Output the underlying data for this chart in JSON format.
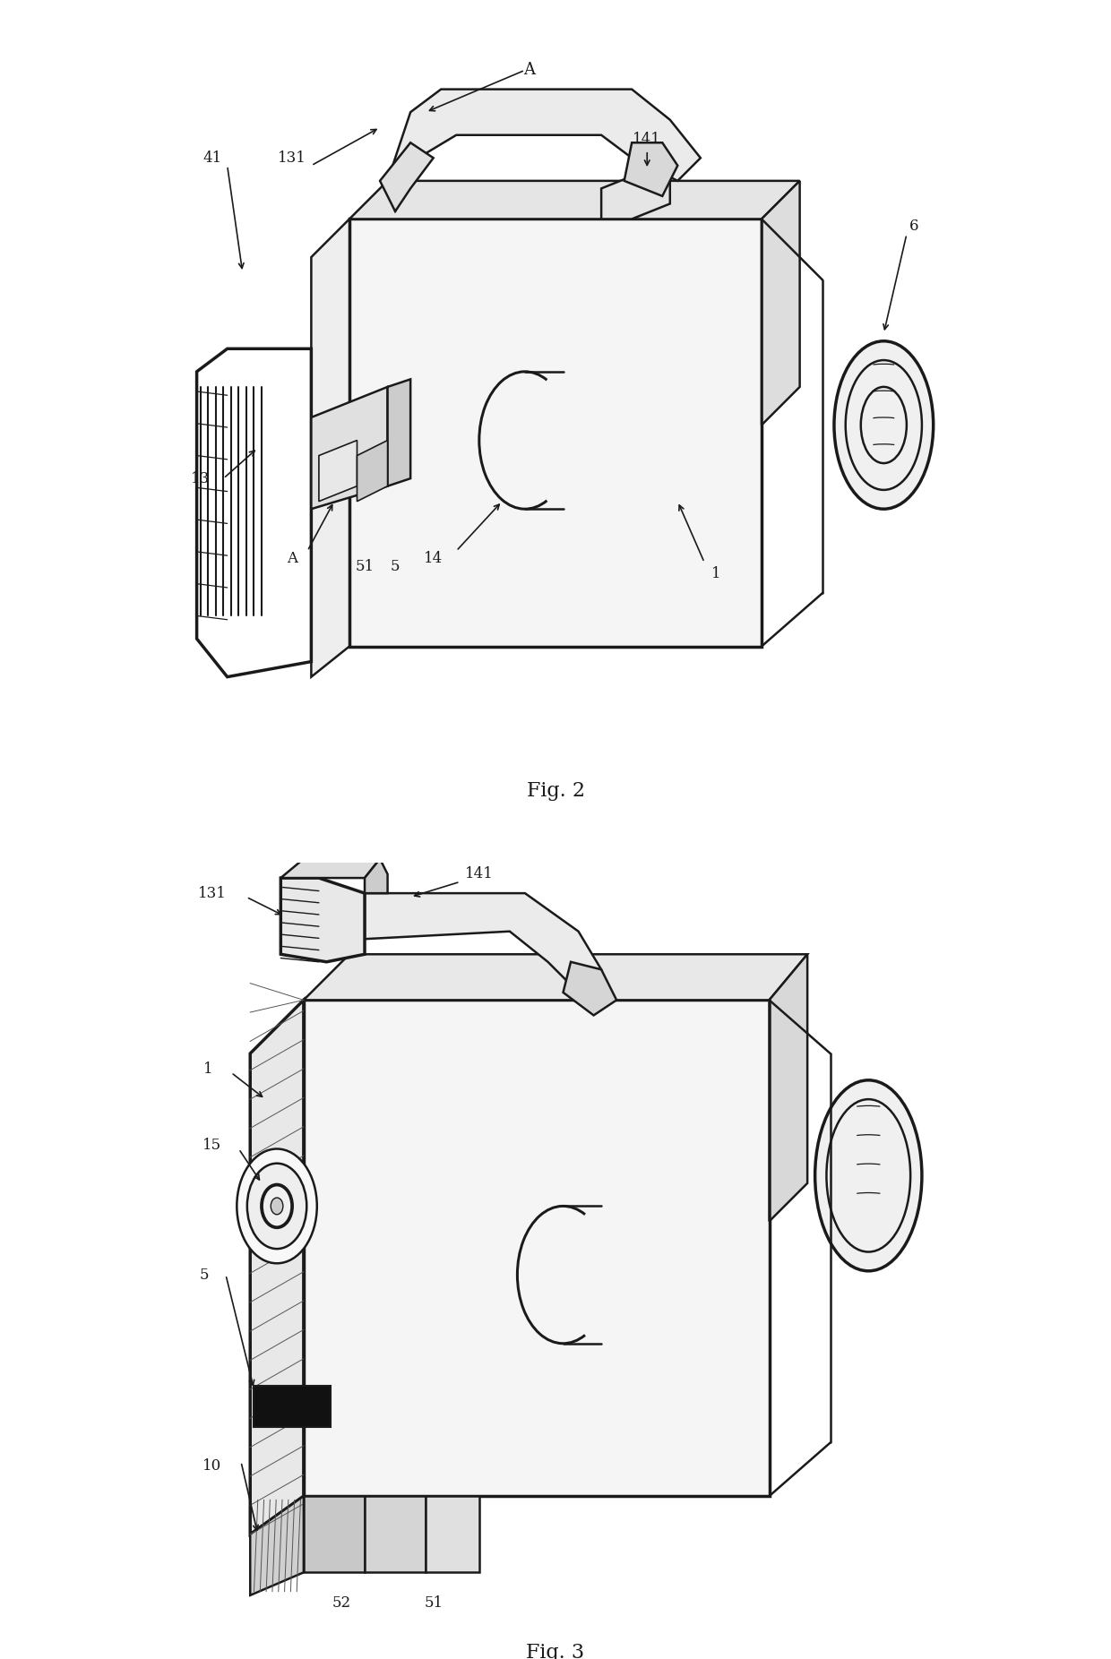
{
  "fig_width": 12.4,
  "fig_height": 18.52,
  "bg_color": "#ffffff",
  "line_color": "#1a1a1a",
  "line_width": 1.8,
  "thin_line": 1.0,
  "thick_line": 2.5,
  "fig2_title": "Fig. 2",
  "fig3_title": "Fig. 3"
}
